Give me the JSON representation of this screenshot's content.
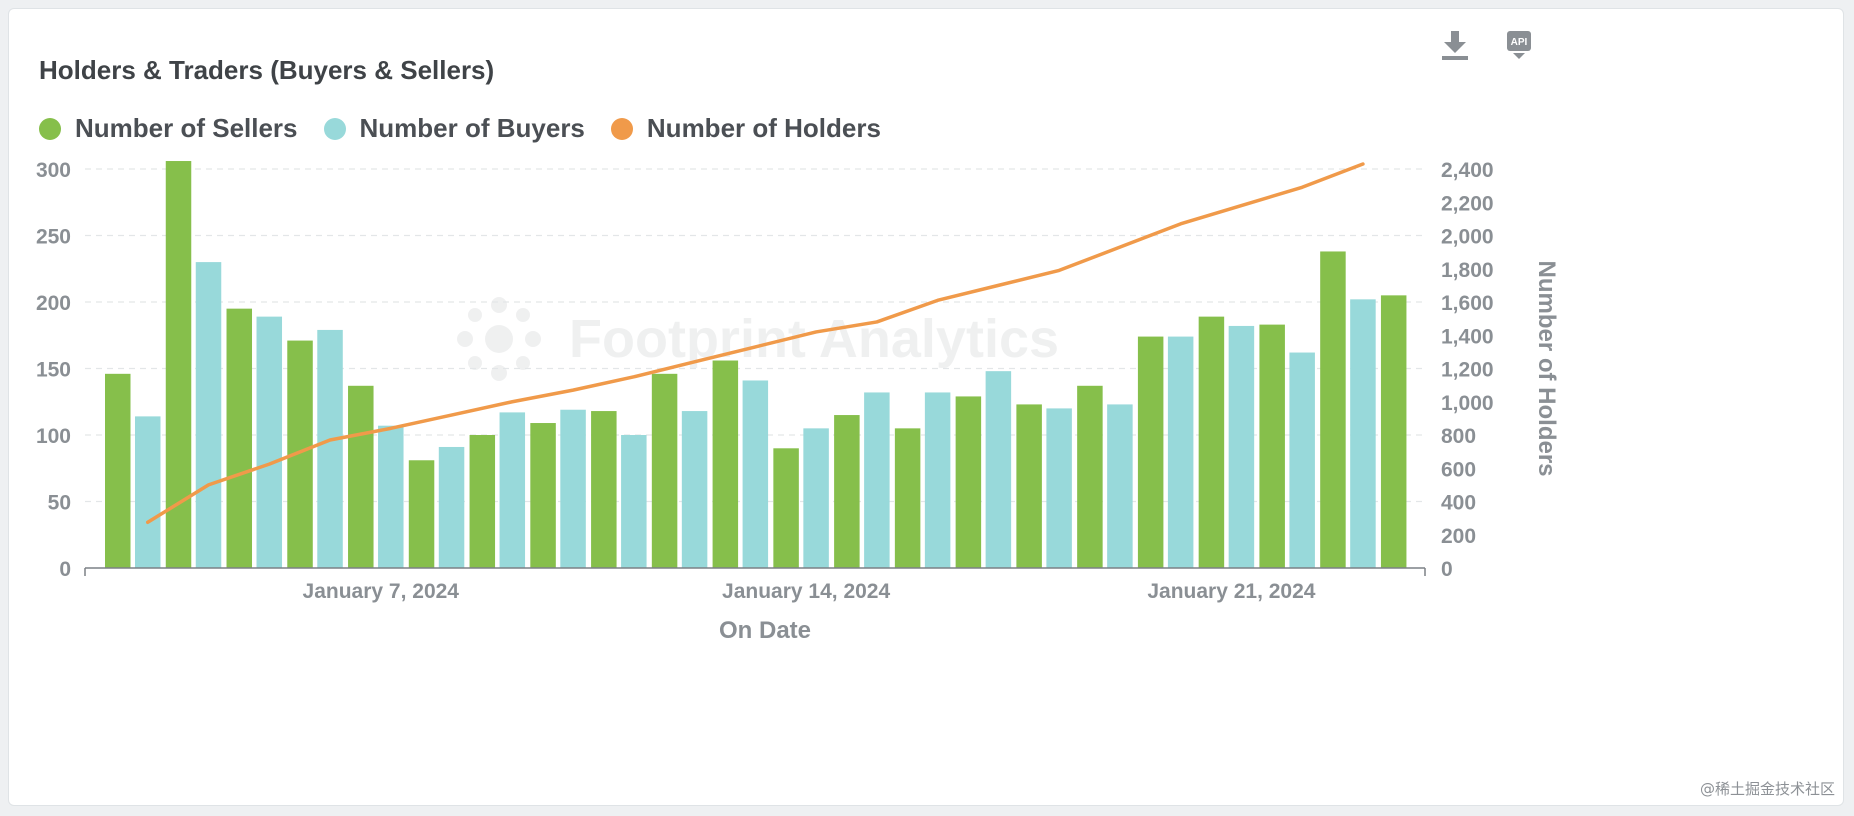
{
  "header": {
    "title": "Holders & Traders (Buyers & Sellers)",
    "download_icon": "download-icon",
    "api_icon": "api-icon",
    "api_label": "API"
  },
  "legend": [
    {
      "label": "Number of Sellers",
      "color": "#86bf4b"
    },
    {
      "label": "Number of Buyers",
      "color": "#98d9da"
    },
    {
      "label": "Number of Holders",
      "color": "#f09a4a"
    }
  ],
  "watermark": {
    "brand": "Footprint Analytics"
  },
  "corner_watermark": "@稀土掘金技术社区",
  "chart_data": {
    "type": "bar",
    "title": "Holders & Traders (Buyers & Sellers)",
    "xlabel": "On Date",
    "ylabel": "",
    "y2label": "Number of Holders",
    "categories": [
      "2024-01-03",
      "2024-01-04",
      "2024-01-05",
      "2024-01-06",
      "2024-01-07",
      "2024-01-08",
      "2024-01-09",
      "2024-01-10",
      "2024-01-11",
      "2024-01-12",
      "2024-01-13",
      "2024-01-14",
      "2024-01-15",
      "2024-01-16",
      "2024-01-17",
      "2024-01-18",
      "2024-01-19",
      "2024-01-20",
      "2024-01-21",
      "2024-01-22",
      "2024-01-23",
      "2024-01-24"
    ],
    "x_ticks": [
      {
        "date": "2024-01-07",
        "label": "January 7, 2024"
      },
      {
        "date": "2024-01-14",
        "label": "January 14, 2024"
      },
      {
        "date": "2024-01-21",
        "label": "January 21, 2024"
      }
    ],
    "series": [
      {
        "name": "Number of Sellers",
        "type": "bar",
        "axis": "left",
        "color": "#86bf4b",
        "values": [
          146,
          306,
          195,
          171,
          137,
          81,
          100,
          109,
          118,
          146,
          156,
          90,
          115,
          105,
          129,
          123,
          137,
          174,
          189,
          183,
          238,
          205
        ]
      },
      {
        "name": "Number of Buyers",
        "type": "bar",
        "axis": "left",
        "color": "#98d9da",
        "values": [
          114,
          230,
          189,
          179,
          107,
          91,
          117,
          119,
          100,
          118,
          141,
          105,
          132,
          132,
          148,
          120,
          123,
          174,
          182,
          162,
          202,
          0
        ]
      },
      {
        "name": "Number of Holders",
        "type": "line",
        "axis": "right",
        "color": "#f09a4a",
        "values": [
          275,
          500,
          625,
          770,
          840,
          920,
          1000,
          1070,
          1150,
          1240,
          1330,
          1420,
          1480,
          1610,
          1700,
          1790,
          1930,
          2070,
          2180,
          2290,
          2430,
          null
        ]
      }
    ],
    "ylim": [
      0,
      300
    ],
    "yticks": [
      0,
      50,
      100,
      150,
      200,
      250,
      300
    ],
    "y2lim": [
      0,
      2400
    ],
    "y2ticks": [
      0,
      200,
      400,
      600,
      800,
      1000,
      1200,
      1400,
      1600,
      1800,
      2000,
      2200,
      2400
    ],
    "y2tick_labels": [
      "0",
      "200",
      "400",
      "600",
      "800",
      "1,000",
      "1,200",
      "1,400",
      "1,600",
      "1,800",
      "2,000",
      "2,200",
      "2,400"
    ],
    "grid": "horizontal dashed",
    "legend_position": "top-left"
  }
}
